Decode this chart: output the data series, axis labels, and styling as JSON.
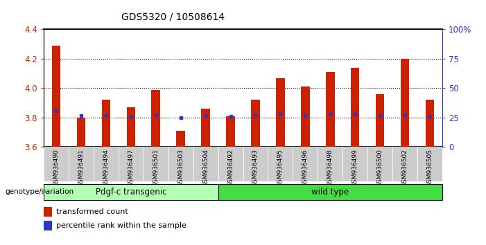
{
  "title": "GDS5320 / 10508614",
  "samples": [
    "GSM936490",
    "GSM936491",
    "GSM936494",
    "GSM936497",
    "GSM936501",
    "GSM936503",
    "GSM936504",
    "GSM936492",
    "GSM936493",
    "GSM936495",
    "GSM936496",
    "GSM936498",
    "GSM936499",
    "GSM936500",
    "GSM936502",
    "GSM936505"
  ],
  "transformed_counts": [
    4.29,
    3.8,
    3.92,
    3.87,
    3.99,
    3.71,
    3.86,
    3.81,
    3.92,
    4.07,
    4.01,
    4.11,
    4.14,
    3.96,
    4.2,
    3.92
  ],
  "percentile_ranks_left": [
    3.845,
    3.815,
    3.815,
    3.805,
    3.82,
    3.8,
    3.815,
    3.81,
    3.815,
    3.825,
    3.815,
    3.825,
    3.825,
    3.815,
    3.82,
    3.81
  ],
  "bar_bottom": 3.6,
  "ylim": [
    3.6,
    4.4
  ],
  "y2lim": [
    0,
    100
  ],
  "y2ticks": [
    0,
    25,
    50,
    75,
    100
  ],
  "y2ticklabels": [
    "0",
    "25",
    "50",
    "75",
    "100%"
  ],
  "yticks": [
    3.6,
    3.8,
    4.0,
    4.2,
    4.4
  ],
  "bar_color": "#cc2200",
  "percentile_color": "#3333cc",
  "group1_label": "Pdgf-c transgenic",
  "group2_label": "wild type",
  "group1_count": 7,
  "group2_count": 9,
  "group1_color": "#b3ffb3",
  "group2_color": "#44dd44",
  "genotype_label": "genotype/variation",
  "legend1": "transformed count",
  "legend2": "percentile rank within the sample",
  "left_axis_color": "#cc2200",
  "right_axis_color": "#3333cc",
  "tick_area_color": "#cccccc"
}
